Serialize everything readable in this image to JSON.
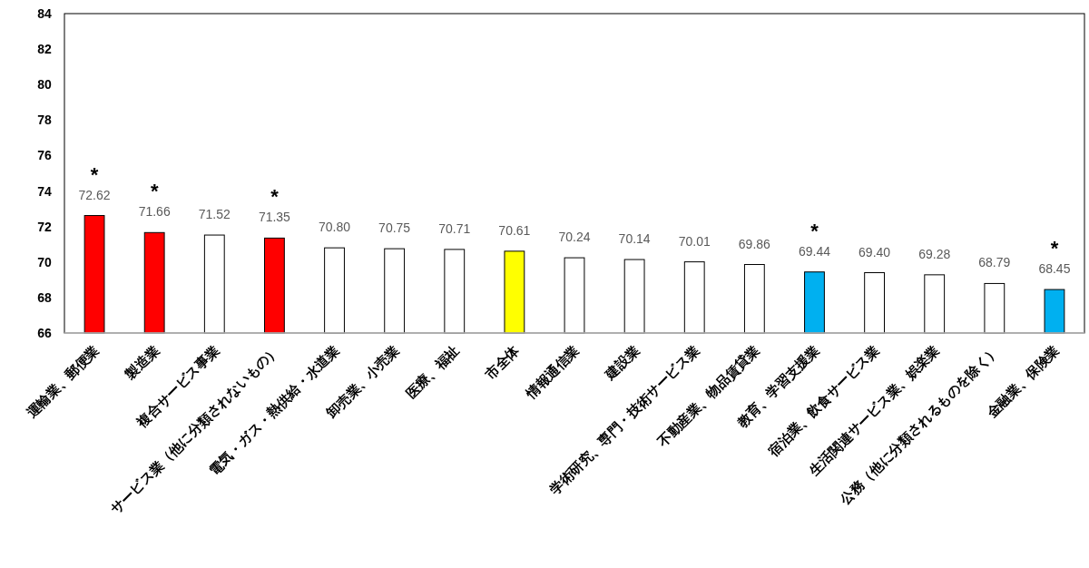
{
  "chart_data": {
    "type": "bar",
    "categories": [
      "運輸業、郵便業",
      "製造業",
      "複合サービス事業",
      "サービス業（他に分類されないもの）",
      "電気・ガス・熱供給・水道業",
      "卸売業、小売業",
      "医療、福祉",
      "市全体",
      "情報通信業",
      "建設業",
      "学術研究、専門・技術サービス業",
      "不動産業、物品賃貸業",
      "教育、学習支援業",
      "宿泊業、飲食サービス業",
      "生活関連サービス業、娯楽業",
      "公務（他に分類されるものを除く）",
      "金融業、保険業"
    ],
    "values": [
      72.62,
      71.66,
      71.52,
      71.35,
      70.8,
      70.75,
      70.71,
      70.61,
      70.24,
      70.14,
      70.01,
      69.86,
      69.44,
      69.4,
      69.28,
      68.79,
      68.45
    ],
    "value_labels": [
      "72.62",
      "71.66",
      "71.52",
      "71.35",
      "70.80",
      "70.75",
      "70.71",
      "70.61",
      "70.24",
      "70.14",
      "70.01",
      "69.86",
      "69.44",
      "69.40",
      "69.28",
      "68.79",
      "68.45"
    ],
    "colors": [
      "#ff0000",
      "#ff0000",
      "#ffffff",
      "#ff0000",
      "#ffffff",
      "#ffffff",
      "#ffffff",
      "#ffff00",
      "#ffffff",
      "#ffffff",
      "#ffffff",
      "#ffffff",
      "#00b0f0",
      "#ffffff",
      "#ffffff",
      "#ffffff",
      "#00b0f0"
    ],
    "ylim": [
      66,
      84
    ],
    "yticks": [
      66,
      68,
      70,
      72,
      74,
      76,
      78,
      80,
      82,
      84
    ],
    "grid": false,
    "annotations": [
      {
        "text": "*",
        "x": "運輸業、郵便業",
        "y": 72.62
      },
      {
        "text": "*",
        "x": "製造業",
        "y": 71.66
      },
      {
        "text": "*",
        "x": "サービス業（他に分類されないもの）",
        "y": 71.35
      },
      {
        "text": "*",
        "x": "教育、学習支援業",
        "y": 69.44
      },
      {
        "text": "*",
        "x": "金融業、保険業",
        "y": 68.45
      }
    ]
  }
}
